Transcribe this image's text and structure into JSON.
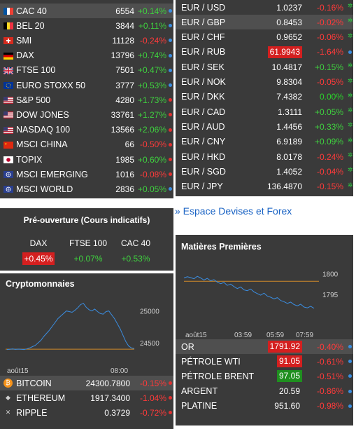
{
  "indices": [
    {
      "name": "CAC 40",
      "value": "6554",
      "change": "+0.14%",
      "dir": "pos",
      "dot": "blue",
      "flag": "fr"
    },
    {
      "name": "BEL 20",
      "value": "3844",
      "change": "+0.11%",
      "dir": "pos",
      "dot": "blue",
      "flag": "be"
    },
    {
      "name": "SMI",
      "value": "11128",
      "change": "-0.24%",
      "dir": "neg",
      "dot": "blue",
      "flag": "ch"
    },
    {
      "name": "DAX",
      "value": "13796",
      "change": "+0.74%",
      "dir": "pos",
      "dot": "blue",
      "flag": "de"
    },
    {
      "name": "FTSE 100",
      "value": "7501",
      "change": "+0.47%",
      "dir": "pos",
      "dot": "blue",
      "flag": "uk"
    },
    {
      "name": "EURO STOXX 50",
      "value": "3777",
      "change": "+0.53%",
      "dir": "pos",
      "dot": "blue",
      "flag": "eu"
    },
    {
      "name": "S&P 500",
      "value": "4280",
      "change": "+1.73%",
      "dir": "pos",
      "dot": "red",
      "flag": "us"
    },
    {
      "name": "DOW JONES",
      "value": "33761",
      "change": "+1.27%",
      "dir": "pos",
      "dot": "red",
      "flag": "us"
    },
    {
      "name": "NASDAQ 100",
      "value": "13566",
      "change": "+2.06%",
      "dir": "pos",
      "dot": "red",
      "flag": "us"
    },
    {
      "name": "MSCI CHINA",
      "value": "66",
      "change": "-0.50%",
      "dir": "neg",
      "dot": "red",
      "flag": "cn"
    },
    {
      "name": "TOPIX",
      "value": "1985",
      "change": "+0.60%",
      "dir": "pos",
      "dot": "red",
      "flag": "jp"
    },
    {
      "name": "MSCI EMERGING",
      "value": "1016",
      "change": "-0.08%",
      "dir": "neg",
      "dot": "red",
      "flag": "world"
    },
    {
      "name": "MSCI WORLD",
      "value": "2836",
      "change": "+0.05%",
      "dir": "pos",
      "dot": "blue",
      "flag": "world"
    }
  ],
  "preopen": {
    "title": "Pré-ouverture (Cours indicatifs)",
    "items": [
      {
        "name": "DAX",
        "value": "+0.45%",
        "boxed": true
      },
      {
        "name": "FTSE 100",
        "value": "+0.07%",
        "boxed": false
      },
      {
        "name": "CAC 40",
        "value": "+0.53%",
        "boxed": false
      }
    ]
  },
  "crypto": {
    "title": "Cryptomonnaies",
    "chart_data": {
      "type": "line",
      "x_ticks": [
        "août15",
        "08:00"
      ],
      "y_ticks": [
        "25000",
        "24500"
      ],
      "ylim": [
        24380,
        25150
      ],
      "reference_line": 24400,
      "values": [
        24395,
        24400,
        24405,
        24398,
        24402,
        24400,
        24395,
        24405,
        24420,
        24440,
        24460,
        24500,
        24540,
        24600,
        24650,
        24700,
        24760,
        24820,
        24880,
        24920,
        24960,
        25000,
        24990,
        24980,
        25010,
        25050,
        25100,
        25120,
        25060,
        25020,
        25000,
        25030,
        24990,
        24960,
        24950,
        24990,
        25000,
        24940,
        24880,
        24800,
        24720,
        24620,
        24520,
        24450,
        24420,
        24410
      ]
    },
    "rows": [
      {
        "name": "BITCOIN",
        "value": "24300.7800",
        "change": "-0.15%",
        "dir": "neg",
        "dot": "red",
        "icon": "bitcoin-icon",
        "glyph": "₿"
      },
      {
        "name": "ETHEREUM",
        "value": "1917.3400",
        "change": "-1.04%",
        "dir": "neg",
        "dot": "red",
        "icon": "ethereum-icon",
        "glyph": "◆"
      },
      {
        "name": "RIPPLE",
        "value": "0.3729",
        "change": "-0.72%",
        "dir": "neg",
        "dot": "red",
        "icon": "ripple-icon",
        "glyph": "✕"
      }
    ]
  },
  "forex": [
    {
      "name": "EUR / USD",
      "value": "1.0237",
      "change": "-0.16%",
      "dir": "neg",
      "dot": "star",
      "boxed": false
    },
    {
      "name": "EUR / GBP",
      "value": "0.8453",
      "change": "-0.02%",
      "dir": "neg",
      "dot": "star",
      "boxed": false,
      "hl": true
    },
    {
      "name": "EUR / CHF",
      "value": "0.9652",
      "change": "-0.06%",
      "dir": "neg",
      "dot": "star",
      "boxed": false
    },
    {
      "name": "EUR / RUB",
      "value": "61.9943",
      "change": "-1.64%",
      "dir": "neg",
      "dot": "blue",
      "boxed": true
    },
    {
      "name": "EUR / SEK",
      "value": "10.4817",
      "change": "+0.15%",
      "dir": "pos",
      "dot": "star",
      "boxed": false
    },
    {
      "name": "EUR / NOK",
      "value": "9.8304",
      "change": "-0.05%",
      "dir": "neg",
      "dot": "star",
      "boxed": false
    },
    {
      "name": "EUR / DKK",
      "value": "7.4382",
      "change": "0.00%",
      "dir": "neu",
      "dot": "star",
      "boxed": false
    },
    {
      "name": "EUR / CAD",
      "value": "1.3111",
      "change": "+0.05%",
      "dir": "pos",
      "dot": "star",
      "boxed": false
    },
    {
      "name": "EUR / AUD",
      "value": "1.4456",
      "change": "+0.33%",
      "dir": "pos",
      "dot": "star",
      "boxed": false
    },
    {
      "name": "EUR / CNY",
      "value": "6.9189",
      "change": "+0.09%",
      "dir": "pos",
      "dot": "star",
      "boxed": false
    },
    {
      "name": "EUR / HKD",
      "value": "8.0178",
      "change": "-0.24%",
      "dir": "neg",
      "dot": "star",
      "boxed": false
    },
    {
      "name": "EUR / SGD",
      "value": "1.4052",
      "change": "-0.04%",
      "dir": "neg",
      "dot": "star",
      "boxed": false
    },
    {
      "name": "EUR / JPY",
      "value": "136.4870",
      "change": "-0.15%",
      "dir": "neg",
      "dot": "star",
      "boxed": false
    }
  ],
  "forex_link": "» Espace Devises et Forex",
  "commodities": {
    "title": "Matières Premières",
    "chart_data": {
      "type": "line",
      "x_ticks": [
        "août15",
        "03:59",
        "05:59",
        "07:59"
      ],
      "y_ticks": [
        "1800",
        "1795"
      ],
      "ylim": [
        1789,
        1802
      ],
      "reference_line": 1798.2,
      "values": [
        1799.0,
        1799.3,
        1799.1,
        1798.8,
        1799.4,
        1799.0,
        1798.5,
        1798.9,
        1798.3,
        1798.6,
        1798.0,
        1797.6,
        1797.9,
        1797.2,
        1797.5,
        1796.9,
        1796.4,
        1796.8,
        1796.1,
        1795.9,
        1796.3,
        1795.6,
        1795.2,
        1794.8,
        1795.3,
        1794.6,
        1794.3,
        1793.9,
        1794.2,
        1793.5,
        1793.2,
        1792.8,
        1793.1,
        1792.5,
        1792.2,
        1792.6,
        1791.9,
        1791.7,
        1792.1,
        1791.6
      ]
    },
    "rows": [
      {
        "name": "OR",
        "value": "1791.92",
        "change": "-0.40%",
        "dir": "neg",
        "dot": "blue",
        "box": "red",
        "hl": true
      },
      {
        "name": "PÉTROLE WTI",
        "value": "91.05",
        "change": "-0.61%",
        "dir": "neg",
        "dot": "blue",
        "box": "red"
      },
      {
        "name": "PÉTROLE BRENT",
        "value": "97.05",
        "change": "-0.51%",
        "dir": "neg",
        "dot": "blue",
        "box": "green"
      },
      {
        "name": "ARGENT",
        "value": "20.59",
        "change": "-0.86%",
        "dir": "neg",
        "dot": "blue",
        "box": ""
      },
      {
        "name": "PLATINE",
        "value": "951.60",
        "change": "-0.98%",
        "dir": "neg",
        "dot": "blue",
        "box": ""
      }
    ]
  },
  "colors": {
    "panel": "#3a3a3a",
    "positive": "#3fd13f",
    "negative": "#ff3a3a",
    "line": "#3b8de0",
    "reference": "#d08a2a"
  }
}
